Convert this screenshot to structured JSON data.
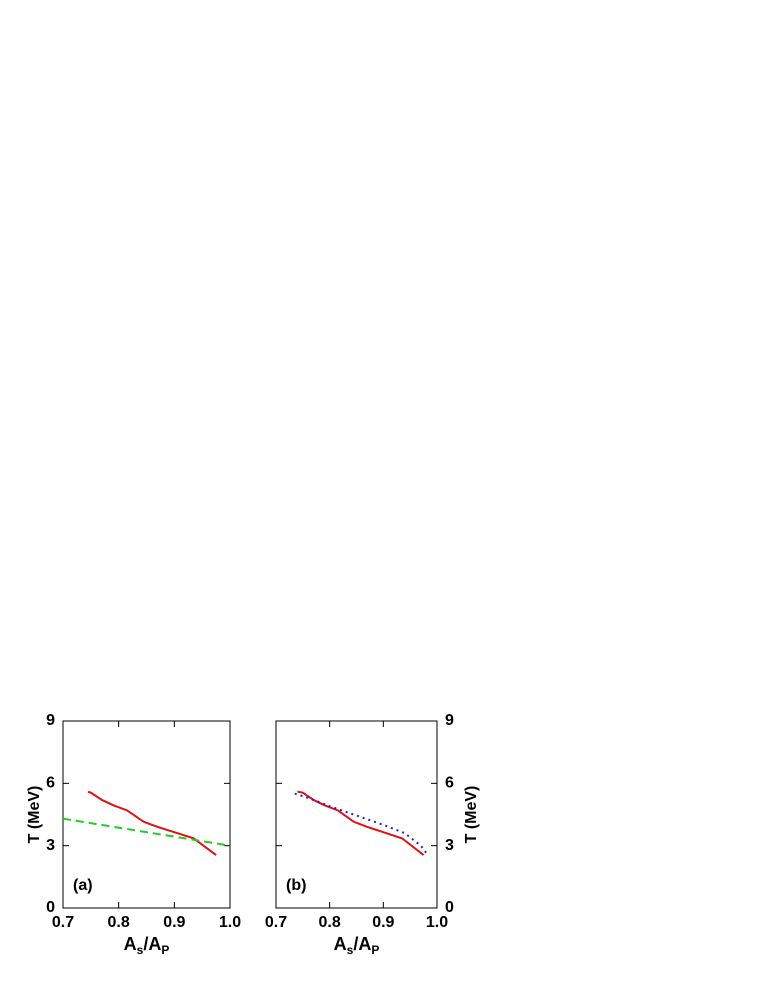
{
  "chart_data": [
    {
      "type": "line",
      "panel_label": "(a)",
      "xlabel": [
        "A",
        "s",
        "/A",
        "P"
      ],
      "ylabel": "T (MeV)",
      "yaxis_side": "left",
      "xlim": [
        0.7,
        1.0
      ],
      "ylim": [
        0,
        9
      ],
      "xticks": [
        0.7,
        0.8,
        0.9,
        {
          "value": 1.0,
          "label": "1.0"
        }
      ],
      "yticks": [
        0,
        3,
        6,
        9
      ],
      "series": [
        {
          "color": "#e01010",
          "style": "solid",
          "x": [
            0.745,
            0.75,
            0.77,
            0.79,
            0.815,
            0.845,
            0.87,
            0.9,
            0.935,
            0.975
          ],
          "values": [
            5.6,
            5.55,
            5.2,
            4.95,
            4.7,
            4.15,
            3.9,
            3.65,
            3.35,
            2.55
          ]
        },
        {
          "color": "#22cc22",
          "style": "dashed",
          "x": [
            0.7,
            1.0
          ],
          "values": [
            4.3,
            3.0
          ]
        }
      ]
    },
    {
      "type": "line",
      "panel_label": "(b)",
      "xlabel": [
        "A",
        "s",
        "/A",
        "P"
      ],
      "ylabel": "T (MeV)",
      "yaxis_side": "right",
      "xlim": [
        0.7,
        1.0
      ],
      "ylim": [
        0,
        9
      ],
      "xticks": [
        0.7,
        0.8,
        0.9,
        {
          "value": 1.0,
          "label": "1.0"
        }
      ],
      "yticks": [
        0,
        3,
        6,
        9
      ],
      "series": [
        {
          "color": "#e01010",
          "style": "solid",
          "x": [
            0.74,
            0.75,
            0.77,
            0.79,
            0.815,
            0.845,
            0.87,
            0.9,
            0.935,
            0.975
          ],
          "values": [
            5.6,
            5.55,
            5.2,
            4.95,
            4.7,
            4.15,
            3.9,
            3.65,
            3.35,
            2.55
          ]
        },
        {
          "color": "#2020dd",
          "style": "dotted",
          "x": [
            0.735,
            0.76,
            0.8,
            0.85,
            0.9,
            0.94,
            0.97,
            0.98
          ],
          "values": [
            5.5,
            5.3,
            4.9,
            4.45,
            4.0,
            3.6,
            3.0,
            2.65
          ]
        }
      ]
    }
  ]
}
